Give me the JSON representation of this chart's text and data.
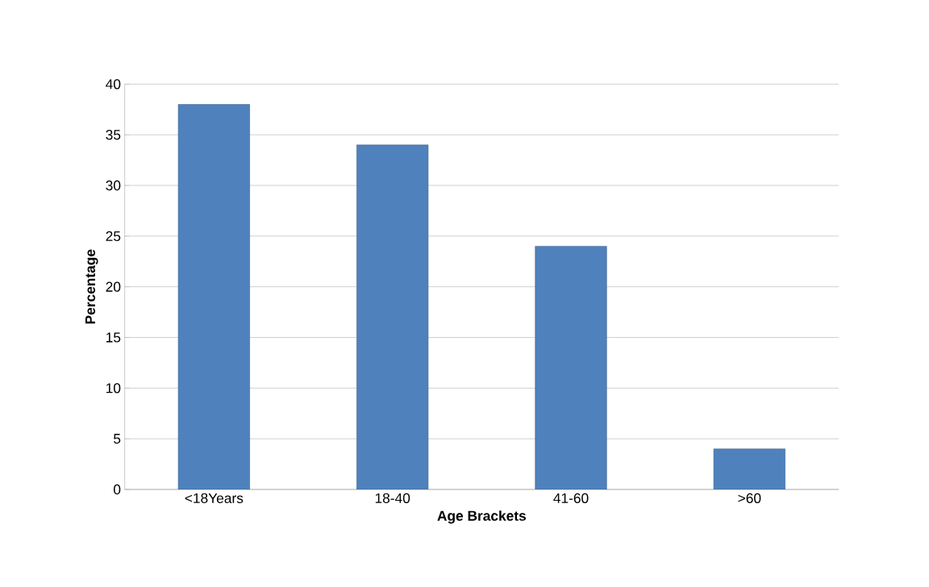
{
  "chart_data": {
    "type": "bar",
    "xlabel": "Age Brackets",
    "ylabel": "Percentage",
    "categories": [
      "<18Years",
      "18-40",
      "41-60",
      ">60"
    ],
    "values": [
      38,
      34,
      24,
      4
    ],
    "color": "#4f81bd",
    "ylim": [
      0,
      40
    ],
    "yticks": [
      0,
      5,
      10,
      15,
      20,
      25,
      30,
      35,
      40
    ],
    "grid": "y"
  }
}
